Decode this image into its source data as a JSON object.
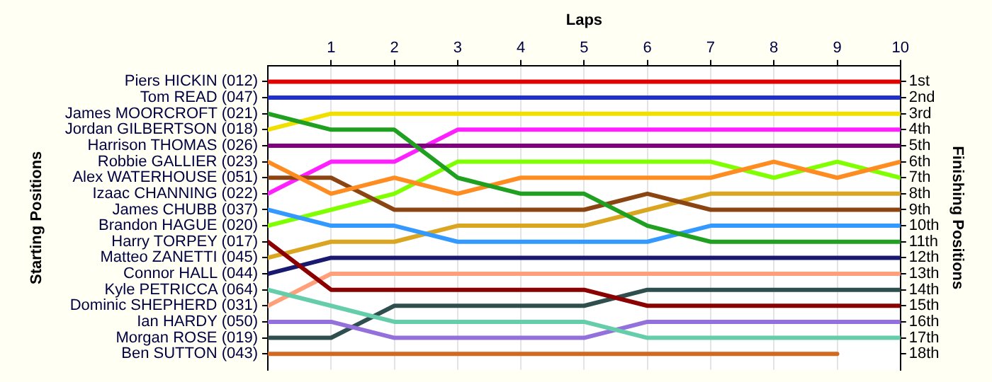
{
  "chart_data": {
    "type": "line",
    "xlabel": "Laps",
    "y2label": "Finishing Positions",
    "x": [
      0,
      1,
      2,
      3,
      4,
      5,
      6,
      7,
      8,
      9,
      10
    ],
    "xlim": [
      0,
      10
    ],
    "xticks": [
      1,
      2,
      3,
      4,
      5,
      6,
      7,
      8,
      9,
      10
    ],
    "y2lim": [
      19,
      0
    ],
    "y2ticks": [
      {
        "value": 1,
        "label": "1st"
      },
      {
        "value": 2,
        "label": "2nd"
      },
      {
        "value": 3,
        "label": "3rd"
      },
      {
        "value": 4,
        "label": "4th"
      },
      {
        "value": 5,
        "label": "5th"
      },
      {
        "value": 6,
        "label": "6th"
      },
      {
        "value": 7,
        "label": "7th"
      },
      {
        "value": 8,
        "label": "8th"
      },
      {
        "value": 9,
        "label": "9th"
      },
      {
        "value": 10,
        "label": "10th"
      },
      {
        "value": 11,
        "label": "11th"
      },
      {
        "value": 12,
        "label": "12th"
      },
      {
        "value": 13,
        "label": "13th"
      },
      {
        "value": 14,
        "label": "14th"
      },
      {
        "value": 15,
        "label": "15th"
      },
      {
        "value": 16,
        "label": "16th"
      },
      {
        "value": 17,
        "label": "17th"
      },
      {
        "value": 18,
        "label": "18th"
      }
    ],
    "annotations": [
      "Starting Positions",
      "Piers HICKIN (012)",
      "Tom READ (047)",
      "James MOORCROFT (021)",
      "Jordan GILBERTSON (018)",
      "Harrison THOMAS (026)",
      "Robbie GALLIER (023)",
      "Alex WATERHOUSE (051)",
      "Izaac CHANNING (022)",
      "James CHUBB (037)",
      "Brandon HAGUE (020)",
      "Harry TORPEY (017)",
      "Matteo ZANETTI (045)",
      "Connor HALL (044)",
      "Kyle PETRICCA (064)",
      "Dominic SHEPHERD (031)",
      "Ian HARDY (050)",
      "Morgan ROSE (019)",
      "Ben SUTTON (043)"
    ],
    "grid": "x",
    "legend": false,
    "marker": "none",
    "line_style": "solid",
    "series": [
      {
        "axis": "y2",
        "color": "#e00000",
        "values": [
          1,
          1,
          1,
          1,
          1,
          1,
          1,
          1,
          1,
          1,
          1
        ]
      },
      {
        "axis": "y2",
        "color": "#2030d0",
        "values": [
          2,
          2,
          2,
          2,
          2,
          2,
          2,
          2,
          2,
          2,
          2
        ]
      },
      {
        "axis": "y2",
        "color": "#20a020",
        "values": [
          3,
          4,
          4,
          7,
          8,
          8,
          10,
          11,
          11,
          11,
          11
        ]
      },
      {
        "axis": "y2",
        "color": "#f0e000",
        "values": [
          4,
          3,
          3,
          3,
          3,
          3,
          3,
          3,
          3,
          3,
          3
        ]
      },
      {
        "axis": "y2",
        "color": "#800080",
        "values": [
          5,
          5,
          5,
          5,
          5,
          5,
          5,
          5,
          5,
          5,
          5
        ]
      },
      {
        "axis": "y2",
        "color": "#ff8c20",
        "values": [
          6,
          8,
          7,
          8,
          7,
          7,
          7,
          7,
          6,
          7,
          6
        ]
      },
      {
        "axis": "y2",
        "color": "#8b4513",
        "values": [
          7,
          7,
          9,
          9,
          9,
          9,
          8,
          9,
          9,
          9,
          9
        ]
      },
      {
        "axis": "y2",
        "color": "#ff20ff",
        "values": [
          8,
          6,
          6,
          4,
          4,
          4,
          4,
          4,
          4,
          4,
          4
        ]
      },
      {
        "axis": "y2",
        "color": "#3399ff",
        "values": [
          9,
          10,
          10,
          11,
          11,
          11,
          11,
          10,
          10,
          10,
          10
        ]
      },
      {
        "axis": "y2",
        "color": "#80ff00",
        "values": [
          10,
          9,
          8,
          6,
          6,
          6,
          6,
          6,
          7,
          6,
          7
        ]
      },
      {
        "axis": "y2",
        "color": "#8b0000",
        "values": [
          11,
          14,
          14,
          14,
          14,
          14,
          15,
          15,
          15,
          15,
          15
        ]
      },
      {
        "axis": "y2",
        "color": "#daa520",
        "values": [
          12,
          11,
          11,
          10,
          10,
          10,
          9,
          8,
          8,
          8,
          8
        ]
      },
      {
        "axis": "y2",
        "color": "#191970",
        "values": [
          13,
          12,
          12,
          12,
          12,
          12,
          12,
          12,
          12,
          12,
          12
        ]
      },
      {
        "axis": "y2",
        "color": "#66cdaa",
        "values": [
          14,
          15,
          16,
          16,
          16,
          16,
          17,
          17,
          17,
          17,
          17
        ]
      },
      {
        "axis": "y2",
        "color": "#ffa07a",
        "values": [
          15,
          13,
          13,
          13,
          13,
          13,
          13,
          13,
          13,
          13,
          13
        ]
      },
      {
        "axis": "y2",
        "color": "#9370db",
        "values": [
          16,
          16,
          17,
          17,
          17,
          17,
          16,
          16,
          16,
          16,
          16
        ]
      },
      {
        "axis": "y2",
        "color": "#2f4f4f",
        "values": [
          17,
          17,
          15,
          15,
          15,
          15,
          14,
          14,
          14,
          14,
          14
        ]
      },
      {
        "axis": "y2",
        "color": "#d2691e",
        "values": [
          18,
          18,
          18,
          18,
          18,
          18,
          18,
          18,
          18,
          18,
          null
        ]
      }
    ]
  }
}
